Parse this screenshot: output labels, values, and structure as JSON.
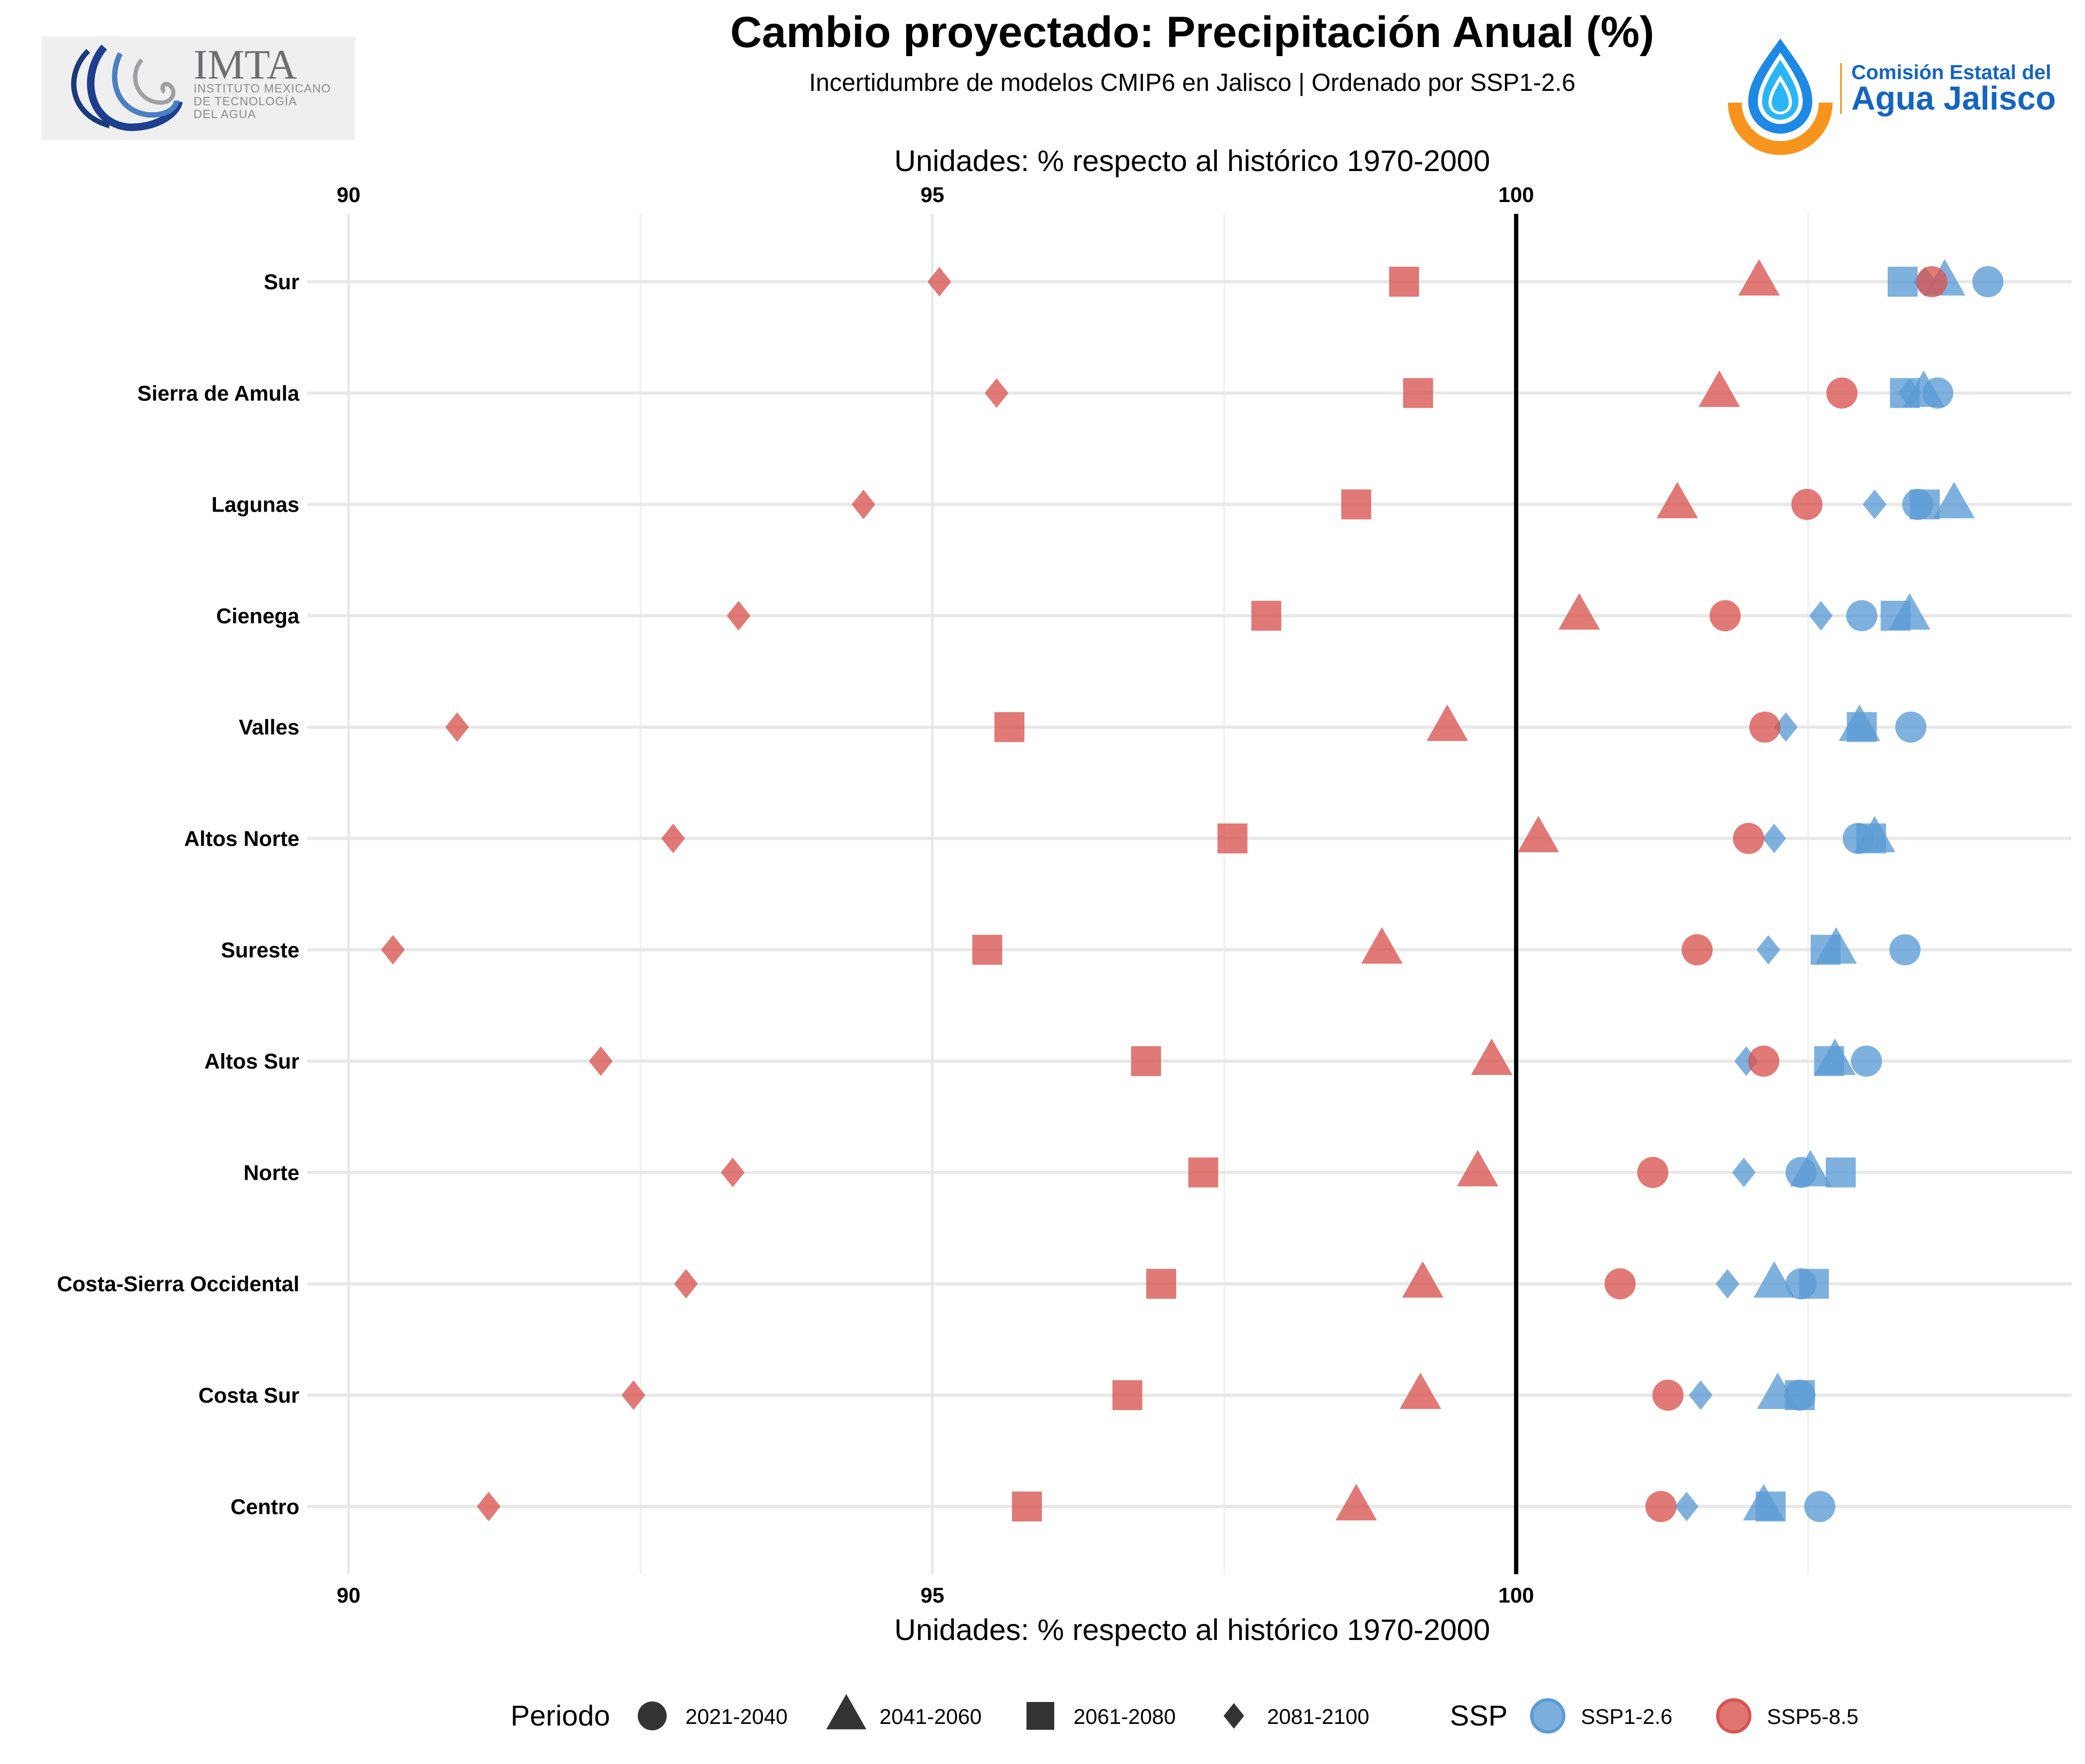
{
  "header": {
    "title": "Cambio proyectado: Precipitación Anual (%)",
    "subtitle": "Incertidumbre de modelos CMIP6 en Jalisco | Ordenado por SSP1-2.6"
  },
  "logos": {
    "left": {
      "acronym": "IMTA",
      "line1": "INSTITUTO MEXICANO",
      "line2": "DE TECNOLOGÍA",
      "line3": "DEL AGUA"
    },
    "right": {
      "line1": "Comisión Estatal del",
      "line2": "Agua Jalisco",
      "colors": {
        "blue": "#1565c0",
        "light_blue": "#29b6f6",
        "orange": "#f7941d"
      }
    }
  },
  "chart_data": {
    "type": "scatter",
    "title": "Cambio proyectado: Precipitación Anual (%)",
    "subtitle": "Incertidumbre de modelos CMIP6 en Jalisco | Ordenado por SSP1-2.6",
    "xlabel": "Unidades: % respecto al histórico 1970-2000",
    "xlabel_top": "Unidades: % respecto al histórico 1970-2000",
    "ylabel": "",
    "xlim": [
      89.9,
      104.75
    ],
    "xticks": [
      90,
      95,
      100
    ],
    "xtick_labels": [
      "90",
      "95",
      "100"
    ],
    "reference_line": 100,
    "grid": true,
    "categories": [
      "Sur",
      "Sierra de Amula",
      "Lagunas",
      "Cienega",
      "Valles",
      "Altos Norte",
      "Sureste",
      "Altos Sur",
      "Norte",
      "Costa-Sierra Occidental",
      "Costa Sur",
      "Centro"
    ],
    "periods": [
      "2021-2040",
      "2041-2060",
      "2061-2080",
      "2081-2100"
    ],
    "period_shapes": [
      "circle",
      "triangle",
      "square",
      "diamond"
    ],
    "series": [
      {
        "name": "SSP1-2.6",
        "color": "#5b9bd5",
        "values": {
          "2021-2040": [
            104.04,
            103.61,
            103.44,
            102.96,
            103.38,
            102.93,
            103.33,
            103.0,
            102.44,
            102.44,
            102.43,
            102.6
          ],
          "2041-2060": [
            103.67,
            103.49,
            103.75,
            103.37,
            102.94,
            103.07,
            102.74,
            102.73,
            102.52,
            102.21,
            102.24,
            102.12
          ],
          "2061-2080": [
            103.31,
            103.33,
            103.5,
            103.25,
            102.96,
            103.04,
            102.65,
            102.68,
            102.78,
            102.55,
            102.43,
            102.18
          ],
          "2081-2100": [
            103.5,
            103.37,
            103.07,
            102.61,
            102.31,
            102.21,
            102.16,
            101.97,
            101.95,
            101.81,
            101.58,
            101.46
          ]
        }
      },
      {
        "name": "SSP5-8.5",
        "color": "#d9534f",
        "values": {
          "2021-2040": [
            103.56,
            102.79,
            102.49,
            101.79,
            102.13,
            101.99,
            101.55,
            102.12,
            101.17,
            100.89,
            101.3,
            101.24
          ],
          "2041-2060": [
            102.08,
            101.74,
            101.38,
            100.54,
            99.41,
            100.19,
            98.85,
            99.79,
            99.67,
            99.2,
            99.18,
            98.63
          ],
          "2061-2080": [
            99.04,
            99.16,
            98.63,
            97.86,
            95.66,
            97.57,
            95.47,
            96.83,
            97.32,
            96.96,
            96.67,
            95.81
          ],
          "2081-2100": [
            95.06,
            95.55,
            94.41,
            93.34,
            90.93,
            92.78,
            90.38,
            92.16,
            93.29,
            92.89,
            92.44,
            91.2
          ]
        }
      }
    ],
    "legend": {
      "position": "bottom",
      "periodo_title": "Periodo",
      "ssp_title": "SSP",
      "periodo_items": [
        "2021-2040",
        "2041-2060",
        "2061-2080",
        "2081-2100"
      ],
      "ssp_items": [
        "SSP1-2.6",
        "SSP5-8.5"
      ]
    }
  }
}
